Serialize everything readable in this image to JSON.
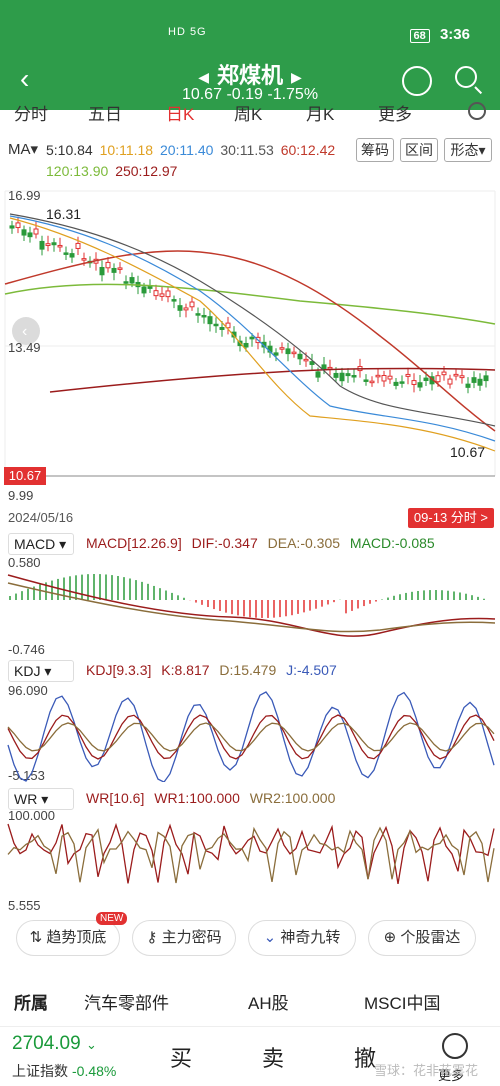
{
  "status": {
    "time": "3:36",
    "network": "HD 5G",
    "battery": "68"
  },
  "header": {
    "title": "郑煤机",
    "price": "10.67",
    "change": "-0.19",
    "pct": "-1.75%"
  },
  "period_tabs": [
    {
      "label": "分时"
    },
    {
      "label": "五日"
    },
    {
      "label": "日K"
    },
    {
      "label": "周K"
    },
    {
      "label": "月K"
    },
    {
      "label": "更多"
    }
  ],
  "ma": {
    "selector": "MA",
    "ma5": "5:10.84",
    "ma10": "10:11.18",
    "ma20": "20:11.40",
    "ma30": "30:11.53",
    "ma60": "60:12.42",
    "ma120": "120:13.90",
    "ma250": "250:12.97",
    "colors": {
      "ma5": "#333333",
      "ma10": "#e0a020",
      "ma20": "#3a8ad8",
      "ma30": "#555555",
      "ma60": "#c0392b",
      "ma120": "#7cba3a",
      "ma250": "#9b1c1c"
    }
  },
  "buttons": {
    "chip": "筹码",
    "range": "区间",
    "pattern": "形态"
  },
  "price_axis": {
    "high": "16.99",
    "mid": "13.49",
    "low": "9.99",
    "current": "10.67",
    "max_marker": "16.31",
    "last_marker": "10.67"
  },
  "date": "2024/05/16",
  "fenshi": "09-13 分时 >",
  "macd": {
    "selector": "MACD",
    "params": "MACD[12.26.9]",
    "dif": "DIF:-0.347",
    "dea": "DEA:-0.305",
    "macd": "MACD:-0.085",
    "top": "0.580",
    "bottom": "-0.746"
  },
  "kdj": {
    "selector": "KDJ",
    "params": "KDJ[9.3.3]",
    "k": "K:8.817",
    "d": "D:15.479",
    "j": "J:-4.507",
    "top": "96.090",
    "bottom": "-5.153"
  },
  "wr": {
    "selector": "WR",
    "params": "WR[10.6]",
    "wr1": "WR1:100.000",
    "wr2": "WR2:100.000",
    "top": "100.000",
    "bottom": "5.555"
  },
  "tags": {
    "trend": "趋势顶底",
    "main": "主力密码",
    "magic": "神奇九转",
    "radar": "个股雷达",
    "new": "NEW"
  },
  "sectors": {
    "title": "所属",
    "s1": "汽车零部件",
    "s2": "AH股",
    "s3": "MSCI中国"
  },
  "index": {
    "value": "2704.09",
    "name": "上证指数",
    "change": "-0.48%"
  },
  "actions": {
    "buy": "买",
    "sell": "卖",
    "cancel": "撤",
    "more": "更多"
  },
  "watermark": "雪球：花非花雾花"
}
